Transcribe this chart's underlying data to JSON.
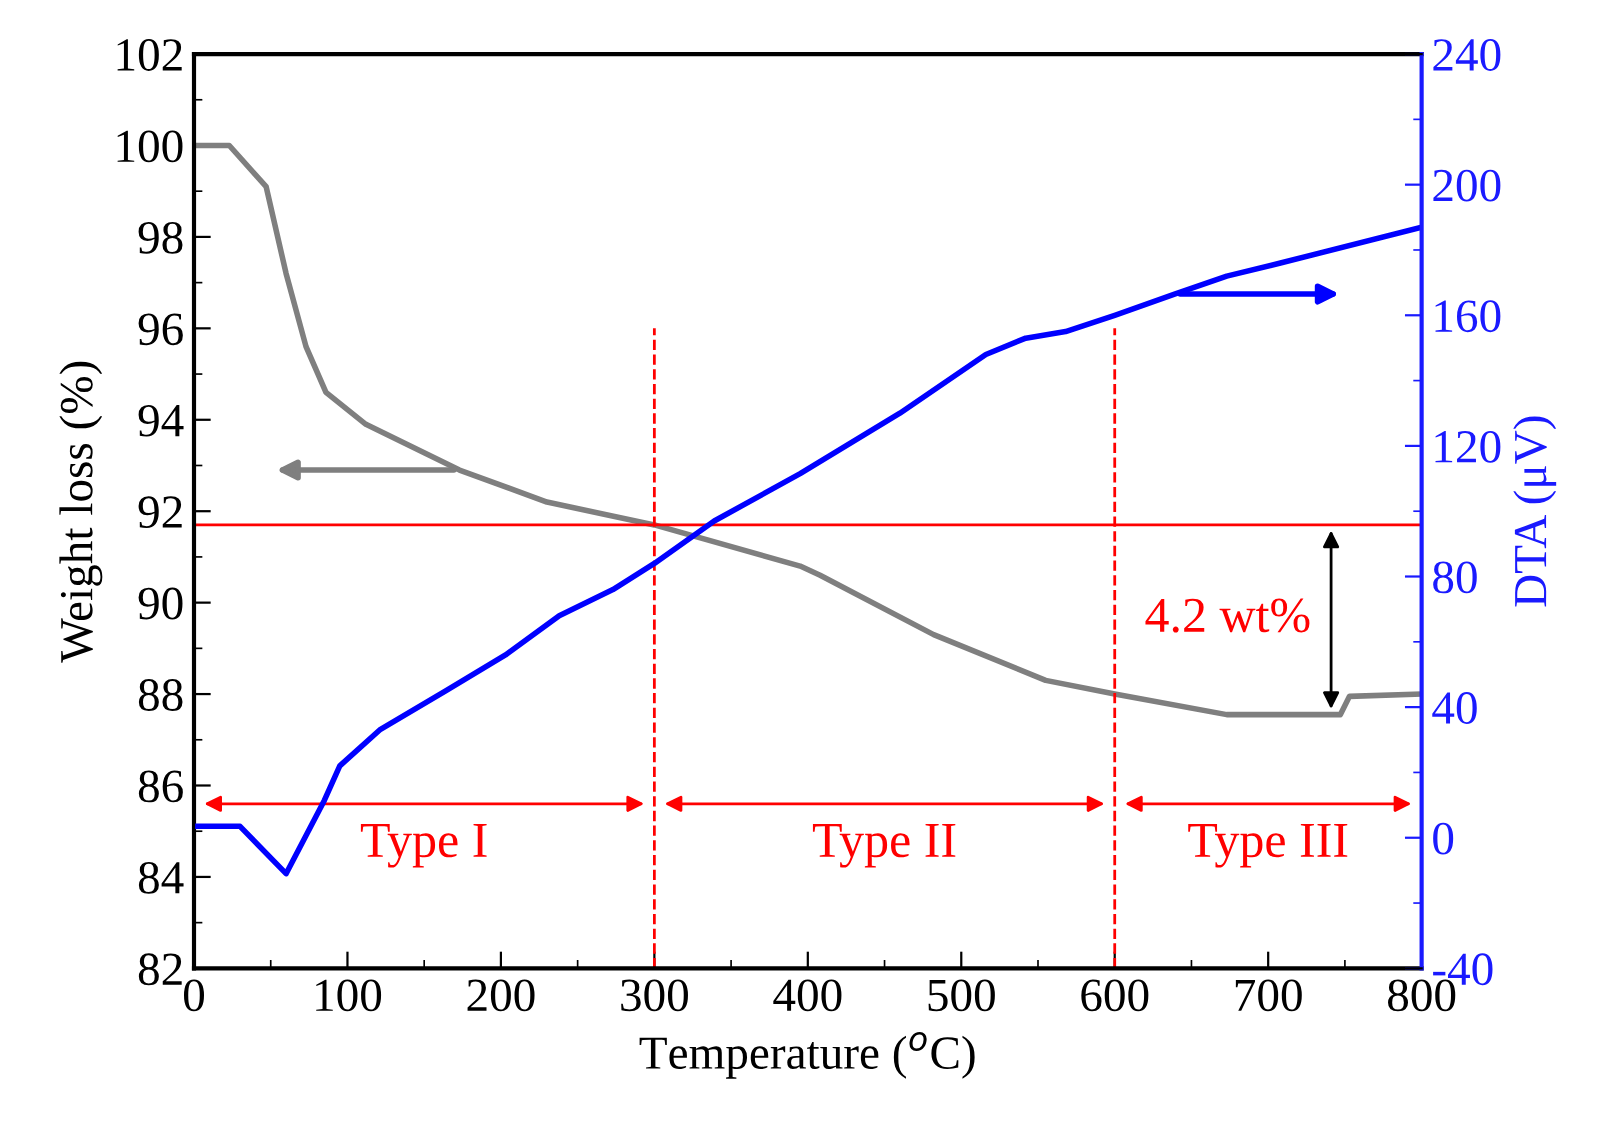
{
  "chart_data": {
    "type": "line",
    "xlabel": "Temperature ($^{o}$C)",
    "ylabel": "Weight loss (%)",
    "y2label": "DTA (μV)",
    "xlim": [
      0,
      800
    ],
    "xticks": [
      0,
      100,
      200,
      300,
      400,
      500,
      600,
      700,
      800
    ],
    "ylim": [
      82,
      102
    ],
    "yticks": [
      82,
      84,
      86,
      88,
      90,
      92,
      94,
      96,
      98,
      100,
      102
    ],
    "y2lim": [
      -40,
      240
    ],
    "y2ticks": [
      {
        "value": -40,
        "label": "-40"
      },
      0,
      40,
      80,
      120,
      160,
      200,
      240
    ],
    "line_style": "solid",
    "marker": "none",
    "grid": false,
    "legend": false,
    "series": [
      {
        "color": "#7f7f7f",
        "x": [
          0,
          23,
          47,
          60,
          73,
          86,
          112,
          173,
          230,
          300,
          395,
          408,
          482,
          555,
          600,
          673,
          747,
          753,
          800
        ],
        "values": [
          100.0,
          100.0,
          99.1,
          97.2,
          95.6,
          94.6,
          93.9,
          92.9,
          92.2,
          91.7,
          90.8,
          90.6,
          89.3,
          88.3,
          88.0,
          87.55,
          87.55,
          87.95,
          88.0
        ]
      },
      {
        "color": "#0000ff",
        "axis": "y2",
        "x": [
          0,
          30,
          60,
          85,
          95,
          121,
          164,
          203,
          238,
          273,
          300,
          339,
          395,
          460,
          516,
          542,
          568,
          600,
          639,
          673,
          708,
          800
        ],
        "values": [
          3.5,
          3.5,
          -11,
          11.5,
          22,
          33,
          45,
          56,
          68,
          76,
          84,
          97,
          111.5,
          130,
          148,
          153,
          155,
          160,
          166.5,
          172,
          176,
          187
        ]
      }
    ],
    "ref_lines": [
      {
        "axis": "y",
        "value": 91.7,
        "color": "#ff0000",
        "line_style": "solid"
      },
      {
        "axis": "x",
        "value": 300,
        "color": "#ff0000",
        "line_style": "dashed"
      },
      {
        "axis": "x",
        "value": 600,
        "color": "#ff0000",
        "line_style": "dashed"
      }
    ],
    "annotations": [
      "Type I",
      "Type II",
      "Type III",
      "4.2 wt%"
    ]
  }
}
